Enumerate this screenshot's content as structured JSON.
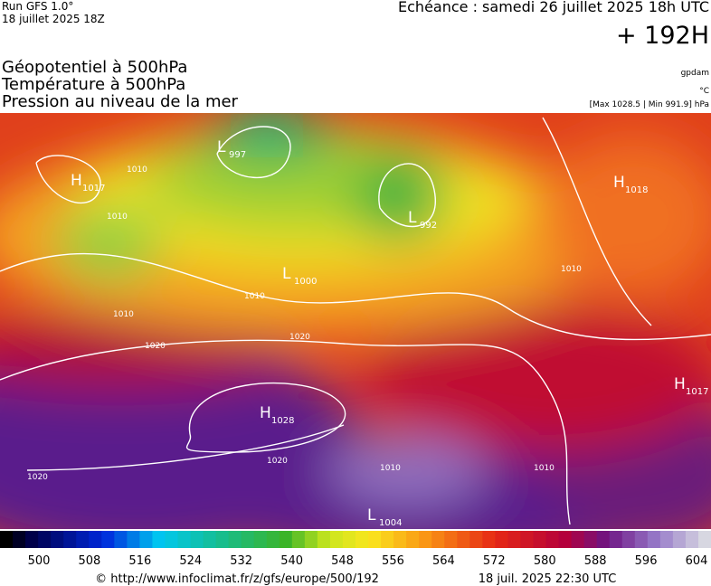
{
  "header": {
    "run": "Run GFS 1.0°",
    "run_date": "18 juillet 2025 18Z",
    "echeance": "Echéance : samedi 26 juillet 2025 18h UTC",
    "lead": "+ 192H",
    "fields": [
      "Géopotentiel à 500hPa",
      "Température à 500hPa",
      "Pression au niveau de la mer"
    ],
    "units": [
      "gpdam",
      "°C",
      "[Max 1028.5 | Min 991.9] hPa"
    ]
  },
  "map": {
    "centers": [
      {
        "type": "H",
        "value": "1017"
      },
      {
        "type": "L",
        "value": "997"
      },
      {
        "type": "L",
        "value": "992"
      },
      {
        "type": "H",
        "value": "1018"
      },
      {
        "type": "L",
        "value": "1000"
      },
      {
        "type": "H",
        "value": "1028"
      },
      {
        "type": "H",
        "value": "1017"
      },
      {
        "type": "L",
        "value": "1004"
      }
    ],
    "isobar_labels": [
      "1010",
      "1010",
      "1010",
      "1020",
      "1020",
      "1010",
      "1020",
      "1020",
      "1010",
      "1010",
      "1010"
    ]
  },
  "colorbar": {
    "labels": [
      "500",
      "508",
      "516",
      "524",
      "532",
      "540",
      "548",
      "556",
      "564",
      "572",
      "580",
      "588",
      "596",
      "604"
    ]
  },
  "footer": {
    "url": "© http://www.infoclimat.fr/z/gfs/europe/500/192",
    "date": "18 juil. 2025 22:30 UTC"
  }
}
